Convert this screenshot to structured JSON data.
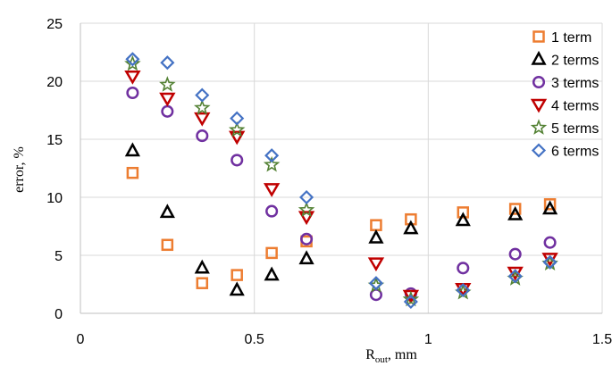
{
  "chart_data": {
    "type": "scatter",
    "title": "",
    "xlabel_main": "R",
    "xlabel_sub": "out",
    "xlabel_unit": ", mm",
    "ylabel": "error, %",
    "xlim": [
      0,
      1.5
    ],
    "ylim": [
      0,
      25
    ],
    "xticks": [
      0,
      0.5,
      1,
      1.5
    ],
    "xtick_labels": [
      "0",
      "0.5",
      "1",
      "1.5"
    ],
    "yticks": [
      0,
      5,
      10,
      15,
      20,
      25
    ],
    "ytick_labels": [
      "0",
      "5",
      "10",
      "15",
      "20",
      "25"
    ],
    "grid": true,
    "legend_position": "right",
    "x": [
      0.15,
      0.25,
      0.35,
      0.45,
      0.55,
      0.65,
      0.85,
      0.95,
      1.1,
      1.25,
      1.35
    ],
    "series": [
      {
        "name": "1 term",
        "marker": "square",
        "color": "#ED7D31",
        "values": [
          12.1,
          5.9,
          2.6,
          3.3,
          5.2,
          6.2,
          7.6,
          8.1,
          8.7,
          9.0,
          9.4
        ]
      },
      {
        "name": "2 terms",
        "marker": "triangle-up",
        "color": "#000000",
        "values": [
          14.0,
          8.7,
          3.9,
          2.0,
          3.3,
          4.7,
          6.5,
          7.3,
          8.0,
          8.5,
          9.0
        ]
      },
      {
        "name": "3 terms",
        "marker": "circle",
        "color": "#7030A0",
        "values": [
          19.0,
          17.4,
          15.3,
          13.2,
          8.8,
          6.4,
          1.6,
          1.7,
          3.9,
          5.1,
          6.1
        ]
      },
      {
        "name": "4 terms",
        "marker": "triangle-down",
        "color": "#C00000",
        "values": [
          20.4,
          18.5,
          16.8,
          15.2,
          10.7,
          8.3,
          4.3,
          1.5,
          2.1,
          3.5,
          4.7
        ]
      },
      {
        "name": "5 terms",
        "marker": "star",
        "color": "#548235",
        "values": [
          21.5,
          19.7,
          17.7,
          15.8,
          12.8,
          8.9,
          2.4,
          1.2,
          1.8,
          3.0,
          4.3
        ]
      },
      {
        "name": "6 terms",
        "marker": "diamond",
        "color": "#4472C4",
        "values": [
          21.9,
          21.6,
          18.8,
          16.8,
          13.6,
          10.0,
          2.6,
          1.0,
          2.0,
          3.2,
          4.4
        ]
      }
    ]
  }
}
